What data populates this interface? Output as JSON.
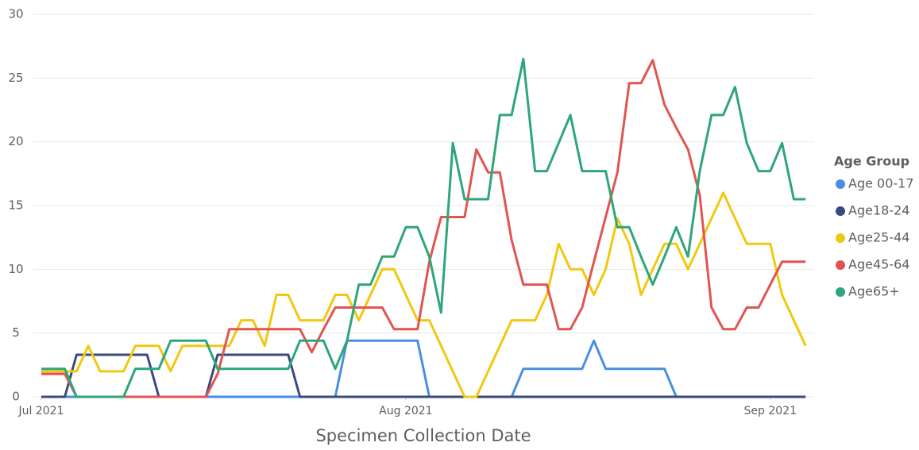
{
  "chart_data": {
    "type": "line",
    "x_label": "Specimen Collection Date",
    "legend_title": "Age Group",
    "legend": "right",
    "grid": true,
    "x": [
      0,
      1,
      2,
      3,
      4,
      5,
      6,
      7,
      8,
      9,
      10,
      11,
      12,
      13,
      14,
      15,
      16,
      17,
      18,
      19,
      20,
      21,
      22,
      23,
      24,
      25,
      26,
      27,
      28,
      29,
      30,
      31,
      32,
      33,
      34,
      35,
      36,
      37,
      38,
      39,
      40,
      41,
      42,
      43,
      44,
      45,
      46,
      47,
      48,
      49,
      50,
      51,
      52,
      53,
      54,
      55,
      56,
      57,
      58,
      59,
      60,
      61,
      62,
      63,
      64,
      65
    ],
    "xlim": [
      0,
      66
    ],
    "xticks": [
      {
        "value": 0,
        "label": "Jul 2021"
      },
      {
        "value": 31,
        "label": "Aug 2021"
      },
      {
        "value": 62,
        "label": "Sep 2021"
      }
    ],
    "ylim": [
      0,
      30
    ],
    "yticks": [
      0,
      5,
      10,
      15,
      20,
      25,
      30
    ],
    "series": [
      {
        "name": "Age 00-17",
        "color": "#4a8ee0",
        "values": [
          0,
          0,
          0,
          0,
          0,
          0,
          0,
          0,
          0,
          0,
          0,
          0,
          0,
          0,
          0,
          0,
          0,
          0,
          0,
          0,
          0,
          0,
          0,
          0,
          0,
          0,
          4.4,
          4.4,
          4.4,
          4.4,
          4.4,
          4.4,
          4.4,
          0,
          0,
          0,
          0,
          0,
          0,
          0,
          0,
          2.2,
          2.2,
          2.2,
          2.2,
          2.2,
          2.2,
          4.4,
          2.2,
          2.2,
          2.2,
          2.2,
          2.2,
          2.2,
          0,
          0,
          0,
          0,
          0,
          0,
          0,
          0,
          0,
          0,
          0,
          0
        ]
      },
      {
        "name": "Age18-24",
        "color": "#3a4a80",
        "values": [
          0,
          0,
          0,
          3.3,
          3.3,
          3.3,
          3.3,
          3.3,
          3.3,
          3.3,
          0,
          0,
          0,
          0,
          0,
          3.3,
          3.3,
          3.3,
          3.3,
          3.3,
          3.3,
          3.3,
          0,
          0,
          0,
          0,
          0,
          0,
          0,
          0,
          0,
          0,
          0,
          0,
          0,
          0,
          0,
          0,
          0,
          0,
          0,
          0,
          0,
          0,
          0,
          0,
          0,
          0,
          0,
          0,
          0,
          0,
          0,
          0,
          0,
          0,
          0,
          0,
          0,
          0,
          0,
          0,
          0,
          0,
          0,
          0
        ]
      },
      {
        "name": "Age25-44",
        "color": "#f2c80f",
        "values": [
          2,
          2,
          2,
          2,
          4,
          2,
          2,
          2,
          4,
          4,
          4,
          2,
          4,
          4,
          4,
          4,
          4,
          6,
          6,
          4,
          8,
          8,
          6,
          6,
          6,
          8,
          8,
          6,
          8,
          10,
          10,
          8,
          6,
          6,
          4,
          2,
          0,
          0,
          2,
          4,
          6,
          6,
          6,
          8,
          12,
          10,
          10,
          8,
          10,
          14,
          12,
          8,
          10,
          12,
          12,
          10,
          12,
          14,
          16,
          14,
          12,
          12,
          12,
          8,
          6,
          4
        ]
      },
      {
        "name": "Age45-64",
        "color": "#e05550",
        "values": [
          1.8,
          1.8,
          1.8,
          0,
          0,
          0,
          0,
          0,
          0,
          0,
          0,
          0,
          0,
          0,
          0,
          1.8,
          5.3,
          5.3,
          5.3,
          5.3,
          5.3,
          5.3,
          5.3,
          3.5,
          5.3,
          7,
          7,
          7,
          7,
          7,
          5.3,
          5.3,
          5.3,
          10.6,
          14.1,
          14.1,
          14.1,
          19.4,
          17.6,
          17.6,
          12.3,
          8.8,
          8.8,
          8.8,
          5.3,
          5.3,
          7,
          10.6,
          14.1,
          17.6,
          24.6,
          24.6,
          26.4,
          22.9,
          21.1,
          19.4,
          15.8,
          7,
          5.3,
          5.3,
          7,
          7,
          8.8,
          10.6,
          10.6,
          10.6
        ]
      },
      {
        "name": "Age65+",
        "color": "#2ea67a",
        "values": [
          2.2,
          2.2,
          2.2,
          0,
          0,
          0,
          0,
          0,
          2.2,
          2.2,
          2.2,
          4.4,
          4.4,
          4.4,
          4.4,
          2.2,
          2.2,
          2.2,
          2.2,
          2.2,
          2.2,
          2.2,
          4.4,
          4.4,
          4.4,
          2.2,
          4.4,
          8.8,
          8.8,
          11,
          11,
          13.3,
          13.3,
          11,
          6.6,
          19.9,
          15.5,
          15.5,
          15.5,
          22.1,
          22.1,
          26.5,
          17.7,
          17.7,
          19.9,
          22.1,
          17.7,
          17.7,
          17.7,
          13.3,
          13.3,
          11,
          8.8,
          11,
          13.3,
          11,
          17.7,
          22.1,
          22.1,
          24.3,
          19.9,
          17.7,
          17.7,
          19.9,
          15.5,
          15.5
        ]
      }
    ]
  }
}
